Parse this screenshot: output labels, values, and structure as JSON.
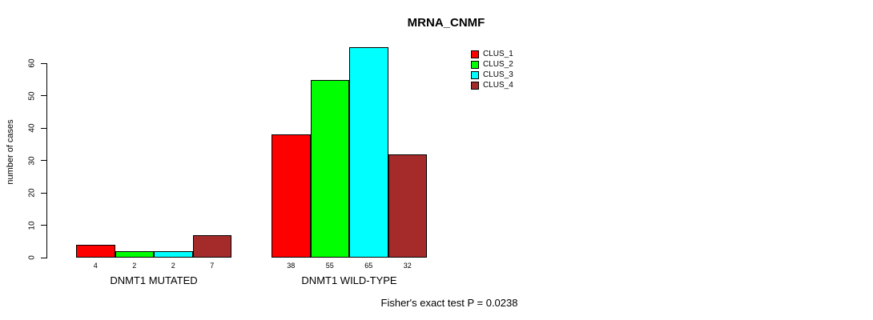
{
  "chart_data": {
    "type": "bar",
    "title": "MRNA_CNMF",
    "ylabel": "number of cases",
    "ylim": [
      0,
      65
    ],
    "yticks": [
      0,
      10,
      20,
      30,
      40,
      50,
      60
    ],
    "categories": [
      "DNMT1 MUTATED",
      "DNMT1 WILD-TYPE"
    ],
    "series": [
      {
        "name": "CLUS_1",
        "color": "#ff0000",
        "values": [
          4,
          38
        ]
      },
      {
        "name": "CLUS_2",
        "color": "#00ff00",
        "values": [
          2,
          55
        ]
      },
      {
        "name": "CLUS_3",
        "color": "#00ffff",
        "values": [
          2,
          65
        ]
      },
      {
        "name": "CLUS_4",
        "color": "#a52a2a",
        "values": [
          7,
          32
        ]
      }
    ],
    "bar_value_labels": [
      [
        "4",
        "2",
        "2",
        "7"
      ],
      [
        "38",
        "55",
        "65",
        "32"
      ]
    ],
    "legend_position": "top-right",
    "legend_frame": false,
    "grid": false,
    "annotation": "Fisher's exact test P = 0.0238"
  }
}
